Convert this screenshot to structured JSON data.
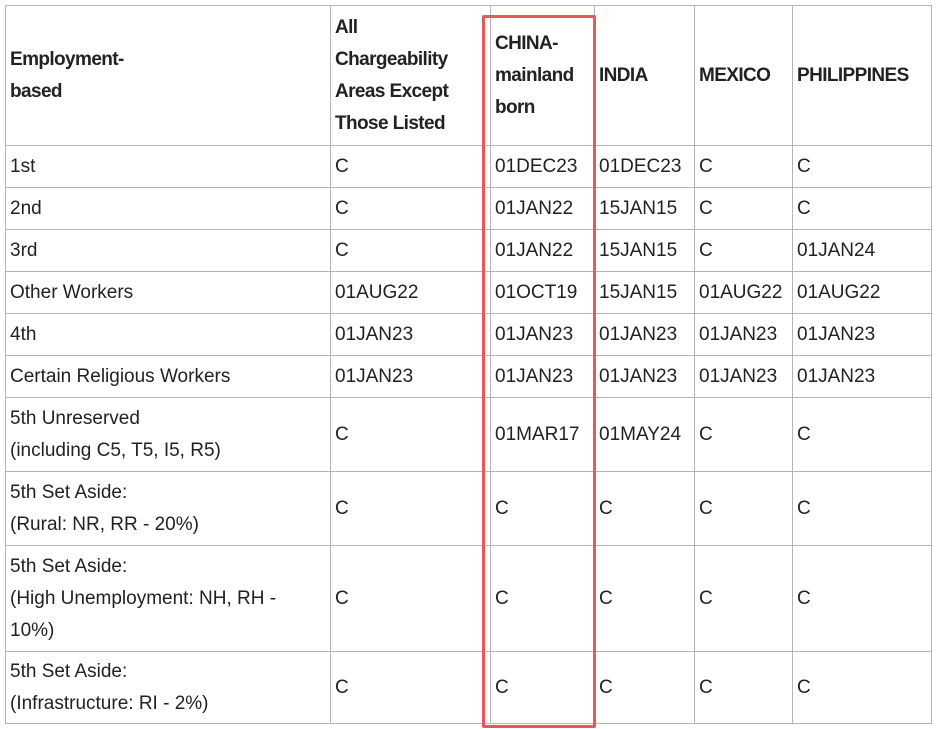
{
  "table": {
    "header": [
      [
        "Employment-",
        "based"
      ],
      [
        "All",
        "Chargeability",
        "Areas Except",
        "Those Listed"
      ],
      [
        "CHINA-",
        "mainland",
        "born"
      ],
      [
        "INDIA"
      ],
      [
        "MEXICO"
      ],
      [
        "PHILIPPINES"
      ]
    ],
    "rows": [
      [
        [
          "1st"
        ],
        [
          "C"
        ],
        [
          "01DEC23"
        ],
        [
          "01DEC23"
        ],
        [
          "C"
        ],
        [
          "C"
        ]
      ],
      [
        [
          "2nd"
        ],
        [
          "C"
        ],
        [
          "01JAN22"
        ],
        [
          "15JAN15"
        ],
        [
          "C"
        ],
        [
          "C"
        ]
      ],
      [
        [
          "3rd"
        ],
        [
          "C"
        ],
        [
          "01JAN22"
        ],
        [
          "15JAN15"
        ],
        [
          "C"
        ],
        [
          "01JAN24"
        ]
      ],
      [
        [
          "Other Workers"
        ],
        [
          "01AUG22"
        ],
        [
          "01OCT19"
        ],
        [
          "15JAN15"
        ],
        [
          "01AUG22"
        ],
        [
          "01AUG22"
        ]
      ],
      [
        [
          "4th"
        ],
        [
          "01JAN23"
        ],
        [
          "01JAN23"
        ],
        [
          "01JAN23"
        ],
        [
          "01JAN23"
        ],
        [
          "01JAN23"
        ]
      ],
      [
        [
          "Certain Religious Workers"
        ],
        [
          "01JAN23"
        ],
        [
          "01JAN23"
        ],
        [
          "01JAN23"
        ],
        [
          "01JAN23"
        ],
        [
          "01JAN23"
        ]
      ],
      [
        [
          "5th Unreserved",
          "(including C5, T5, I5, R5)"
        ],
        [
          "C"
        ],
        [
          "01MAR17"
        ],
        [
          "01MAY24"
        ],
        [
          "C"
        ],
        [
          "C"
        ]
      ],
      [
        [
          "5th Set Aside:",
          "(Rural: NR, RR - 20%)"
        ],
        [
          "C"
        ],
        [
          "C"
        ],
        [
          "C"
        ],
        [
          "C"
        ],
        [
          "C"
        ]
      ],
      [
        [
          "5th Set Aside:",
          "(High Unemployment: NH, RH -",
          "10%)"
        ],
        [
          "C"
        ],
        [
          "C"
        ],
        [
          "C"
        ],
        [
          "C"
        ],
        [
          "C"
        ]
      ],
      [
        [
          "5th Set Aside:",
          "(Infrastructure: RI - 2%)"
        ],
        [
          "C"
        ],
        [
          "C"
        ],
        [
          "C"
        ],
        [
          "C"
        ],
        [
          "C"
        ]
      ]
    ]
  }
}
